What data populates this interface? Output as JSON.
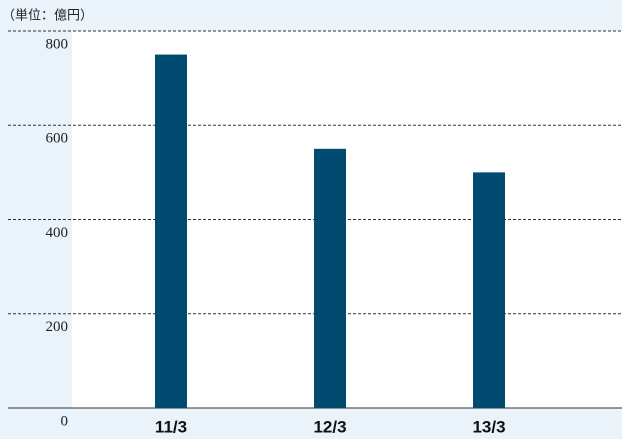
{
  "chart_data": {
    "type": "bar",
    "unit_label": "（単位：億円）",
    "categories": [
      "11/3",
      "12/3",
      "13/3"
    ],
    "values": [
      750,
      550,
      500
    ],
    "color": "#004b6f",
    "ylim": [
      0,
      800
    ],
    "yticks": [
      0,
      200,
      400,
      600,
      800
    ],
    "grid": true
  }
}
